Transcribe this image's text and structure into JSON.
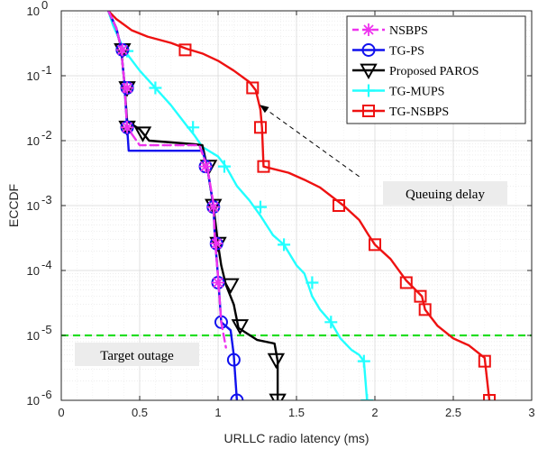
{
  "chart_data": {
    "type": "line",
    "title": "",
    "xlabel": "URLLC radio latency (ms)",
    "ylabel": "ECCDF",
    "xlim": [
      0,
      3
    ],
    "ylim": [
      1e-06,
      1
    ],
    "yscale": "log",
    "grid": true,
    "legend_position": "top-right",
    "x_ticks": [
      "0",
      "0.5",
      "1",
      "1.5",
      "2",
      "2.5",
      "3"
    ],
    "y_tick_bases": [
      "10",
      "10",
      "10",
      "10",
      "10",
      "10",
      "10"
    ],
    "y_tick_exps": [
      "0",
      "-1",
      "-2",
      "-3",
      "-4",
      "-5",
      "-6"
    ],
    "y_tick_values": [
      1,
      0.1,
      0.01,
      0.001,
      0.0001,
      1e-05,
      1e-06
    ],
    "target_outage": {
      "value": 1e-05,
      "label": "Target outage",
      "color": "#22dd22"
    },
    "annotation": {
      "label": "Queuing delay",
      "arrow_to": [
        1.27,
        0.035
      ],
      "arrow_from": [
        1.9,
        0.0028
      ]
    },
    "series": [
      {
        "name": "NSBPS",
        "color": "#ee33ee",
        "style": "dashed",
        "marker": "asterisk",
        "line": [
          [
            0.3,
            1
          ],
          [
            0.35,
            0.55
          ],
          [
            0.38,
            0.28
          ],
          [
            0.4,
            0.09
          ],
          [
            0.42,
            0.016
          ],
          [
            0.5,
            0.0085
          ],
          [
            0.88,
            0.0085
          ],
          [
            0.93,
            0.004
          ],
          [
            0.97,
            0.0011
          ],
          [
            0.98,
            0.0003
          ],
          [
            1.0,
            8e-05
          ],
          [
            1.02,
            1.6e-05
          ],
          [
            1.05,
            6.5e-06
          ]
        ],
        "markers": [
          [
            0.39,
            0.25
          ],
          [
            0.42,
            0.065
          ],
          [
            0.42,
            0.016
          ],
          [
            0.92,
            0.004
          ],
          [
            0.97,
            0.00095
          ],
          [
            0.99,
            0.00026
          ],
          [
            1.0,
            6.5e-05
          ]
        ]
      },
      {
        "name": "TG-PS",
        "color": "#1111ee",
        "style": "solid",
        "marker": "circle",
        "line": [
          [
            0.3,
            1
          ],
          [
            0.35,
            0.55
          ],
          [
            0.38,
            0.28
          ],
          [
            0.4,
            0.09
          ],
          [
            0.42,
            0.016
          ],
          [
            0.43,
            0.007
          ],
          [
            0.9,
            0.007
          ],
          [
            0.93,
            0.004
          ],
          [
            0.97,
            0.001
          ],
          [
            0.98,
            0.0003
          ],
          [
            1.0,
            8e-05
          ],
          [
            1.02,
            1.6e-05
          ],
          [
            1.08,
            1.2e-05
          ],
          [
            1.1,
            5e-06
          ],
          [
            1.12,
            1e-06
          ]
        ],
        "markers": [
          [
            0.39,
            0.25
          ],
          [
            0.42,
            0.065
          ],
          [
            0.42,
            0.016
          ],
          [
            0.92,
            0.004
          ],
          [
            0.97,
            0.00095
          ],
          [
            0.99,
            0.00026
          ],
          [
            1.0,
            6.5e-05
          ],
          [
            1.02,
            1.6e-05
          ],
          [
            1.1,
            4.2e-06
          ],
          [
            1.12,
            1e-06
          ]
        ]
      },
      {
        "name": "Proposed PAROS",
        "color": "#000000",
        "style": "solid",
        "marker": "triangle-down",
        "line": [
          [
            0.3,
            1
          ],
          [
            0.35,
            0.55
          ],
          [
            0.38,
            0.28
          ],
          [
            0.4,
            0.09
          ],
          [
            0.42,
            0.02
          ],
          [
            0.5,
            0.015
          ],
          [
            0.56,
            0.01
          ],
          [
            0.85,
            0.0088
          ],
          [
            0.9,
            0.0085
          ],
          [
            0.93,
            0.004
          ],
          [
            0.97,
            0.001
          ],
          [
            1.0,
            0.00025
          ],
          [
            1.02,
            0.00012
          ],
          [
            1.05,
            6e-05
          ],
          [
            1.1,
            3e-05
          ],
          [
            1.13,
            1.3e-05
          ],
          [
            1.25,
            8.5e-06
          ],
          [
            1.36,
            7.5e-06
          ],
          [
            1.38,
            4e-06
          ],
          [
            1.38,
            1e-06
          ]
        ],
        "markers": [
          [
            0.39,
            0.25
          ],
          [
            0.42,
            0.065
          ],
          [
            0.42,
            0.016
          ],
          [
            0.52,
            0.013
          ],
          [
            0.94,
            0.004
          ],
          [
            0.97,
            0.001
          ],
          [
            1.0,
            0.00026
          ],
          [
            1.08,
            6e-05
          ],
          [
            1.14,
            1.4e-05
          ],
          [
            1.37,
            4.2e-06
          ],
          [
            1.38,
            1e-06
          ]
        ]
      },
      {
        "name": "TG-MUPS",
        "color": "#22ffff",
        "style": "solid",
        "marker": "plus",
        "line": [
          [
            0.3,
            1
          ],
          [
            0.33,
            0.6
          ],
          [
            0.4,
            0.25
          ],
          [
            0.5,
            0.12
          ],
          [
            0.6,
            0.065
          ],
          [
            0.7,
            0.035
          ],
          [
            0.8,
            0.017
          ],
          [
            0.85,
            0.012
          ],
          [
            0.9,
            0.008
          ],
          [
            1.0,
            0.0057
          ],
          [
            1.05,
            0.004
          ],
          [
            1.12,
            0.002
          ],
          [
            1.2,
            0.0012
          ],
          [
            1.27,
            0.0007
          ],
          [
            1.35,
            0.00035
          ],
          [
            1.42,
            0.00025
          ],
          [
            1.5,
            0.00012
          ],
          [
            1.55,
            9e-05
          ],
          [
            1.6,
            4e-05
          ],
          [
            1.65,
            2.5e-05
          ],
          [
            1.72,
            1.6e-05
          ],
          [
            1.78,
            9e-06
          ],
          [
            1.85,
            6e-06
          ],
          [
            1.9,
            5e-06
          ],
          [
            1.93,
            4e-06
          ],
          [
            1.95,
            1e-06
          ]
        ],
        "markers": [
          [
            0.42,
            0.24
          ],
          [
            0.6,
            0.065
          ],
          [
            0.84,
            0.016
          ],
          [
            1.04,
            0.004
          ],
          [
            1.27,
            0.00095
          ],
          [
            1.42,
            0.00025
          ],
          [
            1.6,
            6.5e-05
          ],
          [
            1.72,
            1.6e-05
          ],
          [
            1.93,
            4e-06
          ],
          [
            1.95,
            1e-06
          ]
        ]
      },
      {
        "name": "TG-NSBPS",
        "color": "#ee1111",
        "style": "solid",
        "marker": "square",
        "line": [
          [
            0.3,
            1
          ],
          [
            0.35,
            0.75
          ],
          [
            0.45,
            0.5
          ],
          [
            0.55,
            0.4
          ],
          [
            0.7,
            0.32
          ],
          [
            0.8,
            0.26
          ],
          [
            0.9,
            0.22
          ],
          [
            1.0,
            0.17
          ],
          [
            1.1,
            0.12
          ],
          [
            1.2,
            0.08
          ],
          [
            1.24,
            0.06
          ],
          [
            1.27,
            0.03
          ],
          [
            1.28,
            0.016
          ],
          [
            1.29,
            0.004
          ],
          [
            1.45,
            0.0032
          ],
          [
            1.55,
            0.0025
          ],
          [
            1.65,
            0.0019
          ],
          [
            1.8,
            0.001
          ],
          [
            1.9,
            0.0006
          ],
          [
            1.96,
            0.00035
          ],
          [
            2.0,
            0.00025
          ],
          [
            2.1,
            0.00015
          ],
          [
            2.2,
            7e-05
          ],
          [
            2.3,
            4e-05
          ],
          [
            2.32,
            2.5e-05
          ],
          [
            2.4,
            1.4e-05
          ],
          [
            2.5,
            9e-06
          ],
          [
            2.6,
            7e-06
          ],
          [
            2.7,
            4.5e-06
          ],
          [
            2.73,
            1e-06
          ]
        ],
        "markers": [
          [
            0.79,
            0.25
          ],
          [
            1.22,
            0.065
          ],
          [
            1.27,
            0.016
          ],
          [
            1.29,
            0.004
          ],
          [
            1.77,
            0.001
          ],
          [
            2.0,
            0.00025
          ],
          [
            2.2,
            6.5e-05
          ],
          [
            2.29,
            4e-05
          ],
          [
            2.32,
            2.5e-05
          ],
          [
            2.7,
            4e-06
          ],
          [
            2.73,
            1e-06
          ]
        ]
      }
    ]
  }
}
